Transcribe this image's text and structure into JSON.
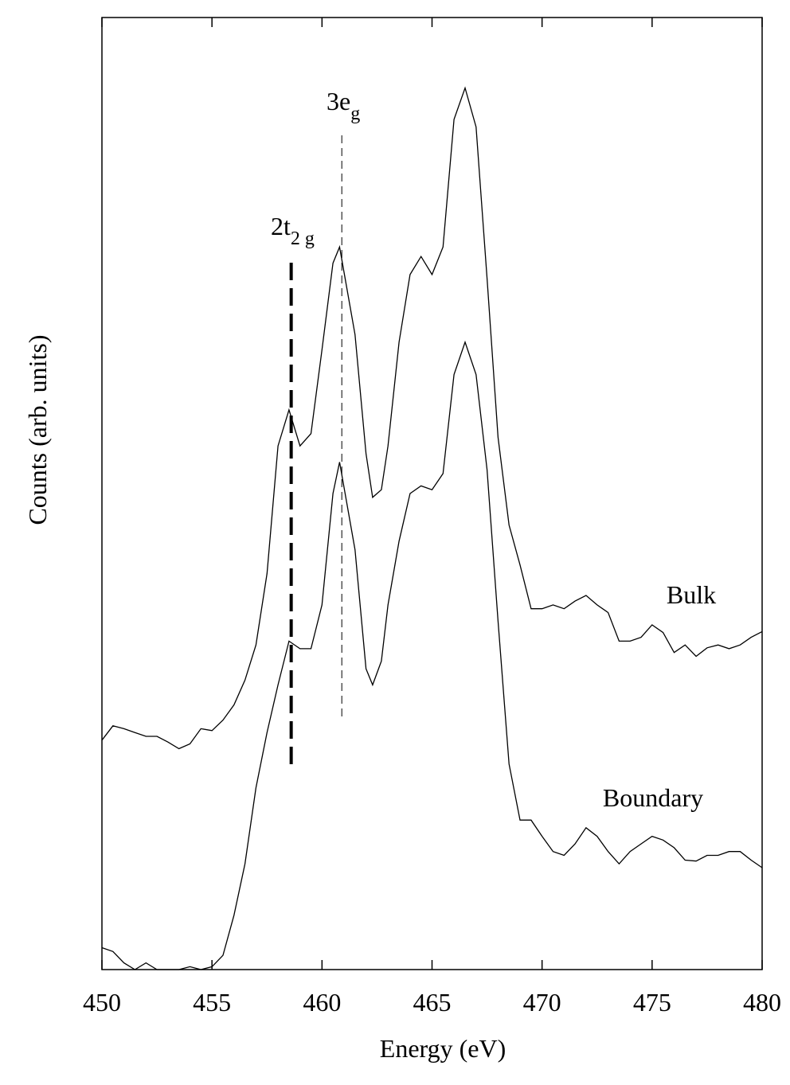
{
  "chart_data": {
    "type": "line",
    "x_label": "Energy (eV)",
    "y_label": "Counts (arb. units)",
    "x": [
      450,
      450.5,
      451,
      451.5,
      452,
      452.5,
      453,
      453.5,
      454,
      454.5,
      455,
      455.5,
      456,
      456.5,
      457,
      457.5,
      458,
      458.5,
      459,
      459.5,
      460,
      460.5,
      460.8,
      461.5,
      462,
      462.3,
      462.7,
      463,
      463.5,
      464,
      464.5,
      465,
      465.5,
      466,
      466.5,
      467,
      467.5,
      468,
      468.5,
      469,
      469.5,
      470,
      470.5,
      471,
      471.5,
      472,
      472.5,
      473,
      473.5,
      474,
      474.5,
      475,
      475.5,
      476,
      476.5,
      477,
      477.5,
      478,
      478.5,
      479,
      479.5,
      480
    ],
    "series": [
      {
        "name": "Bulk",
        "color": "#000000",
        "values": [
          24.1,
          25.6,
          25.3,
          24.9,
          24.5,
          24.5,
          23.9,
          23.2,
          23.7,
          25.3,
          25.1,
          26.2,
          27.8,
          30.4,
          34.1,
          41.6,
          55.0,
          58.8,
          55.0,
          56.3,
          65.1,
          74.2,
          75.9,
          66.7,
          54.2,
          49.6,
          50.4,
          55.0,
          65.9,
          73.0,
          74.9,
          73.0,
          75.9,
          89.3,
          92.6,
          88.5,
          72.6,
          55.9,
          46.7,
          42.5,
          37.9,
          37.9,
          38.3,
          37.9,
          38.7,
          39.3,
          38.3,
          37.5,
          34.5,
          34.5,
          34.9,
          36.2,
          35.4,
          33.3,
          34.1,
          32.9,
          33.8,
          34.1,
          33.7,
          34.1,
          34.9,
          35.5
        ]
      },
      {
        "name": "Boundary",
        "color": "#000000",
        "values": [
          2.3,
          1.9,
          0.7,
          0,
          0.7,
          0,
          0,
          0,
          0.3,
          0,
          0.3,
          1.5,
          5.7,
          11.1,
          19.1,
          24.9,
          29.9,
          34.5,
          33.7,
          33.7,
          38.3,
          50.0,
          53.3,
          44.1,
          31.6,
          29.9,
          32.4,
          38.3,
          45.0,
          50.0,
          50.8,
          50.4,
          52.1,
          62.5,
          65.9,
          62.5,
          52.5,
          36.6,
          21.6,
          15.7,
          15.7,
          14.0,
          12.4,
          12.0,
          13.2,
          14.9,
          14.0,
          12.4,
          11.1,
          12.4,
          13.2,
          14.0,
          13.6,
          12.8,
          11.5,
          11.4,
          12.0,
          12.0,
          12.4,
          12.4,
          11.5,
          10.7
        ]
      }
    ],
    "markers": [
      {
        "label": "2t",
        "subscript": "2 g",
        "x": 458.6
      },
      {
        "label": "3e",
        "subscript": "g",
        "x": 460.9
      }
    ],
    "xlim": [
      450,
      480
    ],
    "ylim": [
      0,
      100
    ],
    "xticks": [
      450,
      455,
      460,
      465,
      470,
      475,
      480
    ]
  }
}
